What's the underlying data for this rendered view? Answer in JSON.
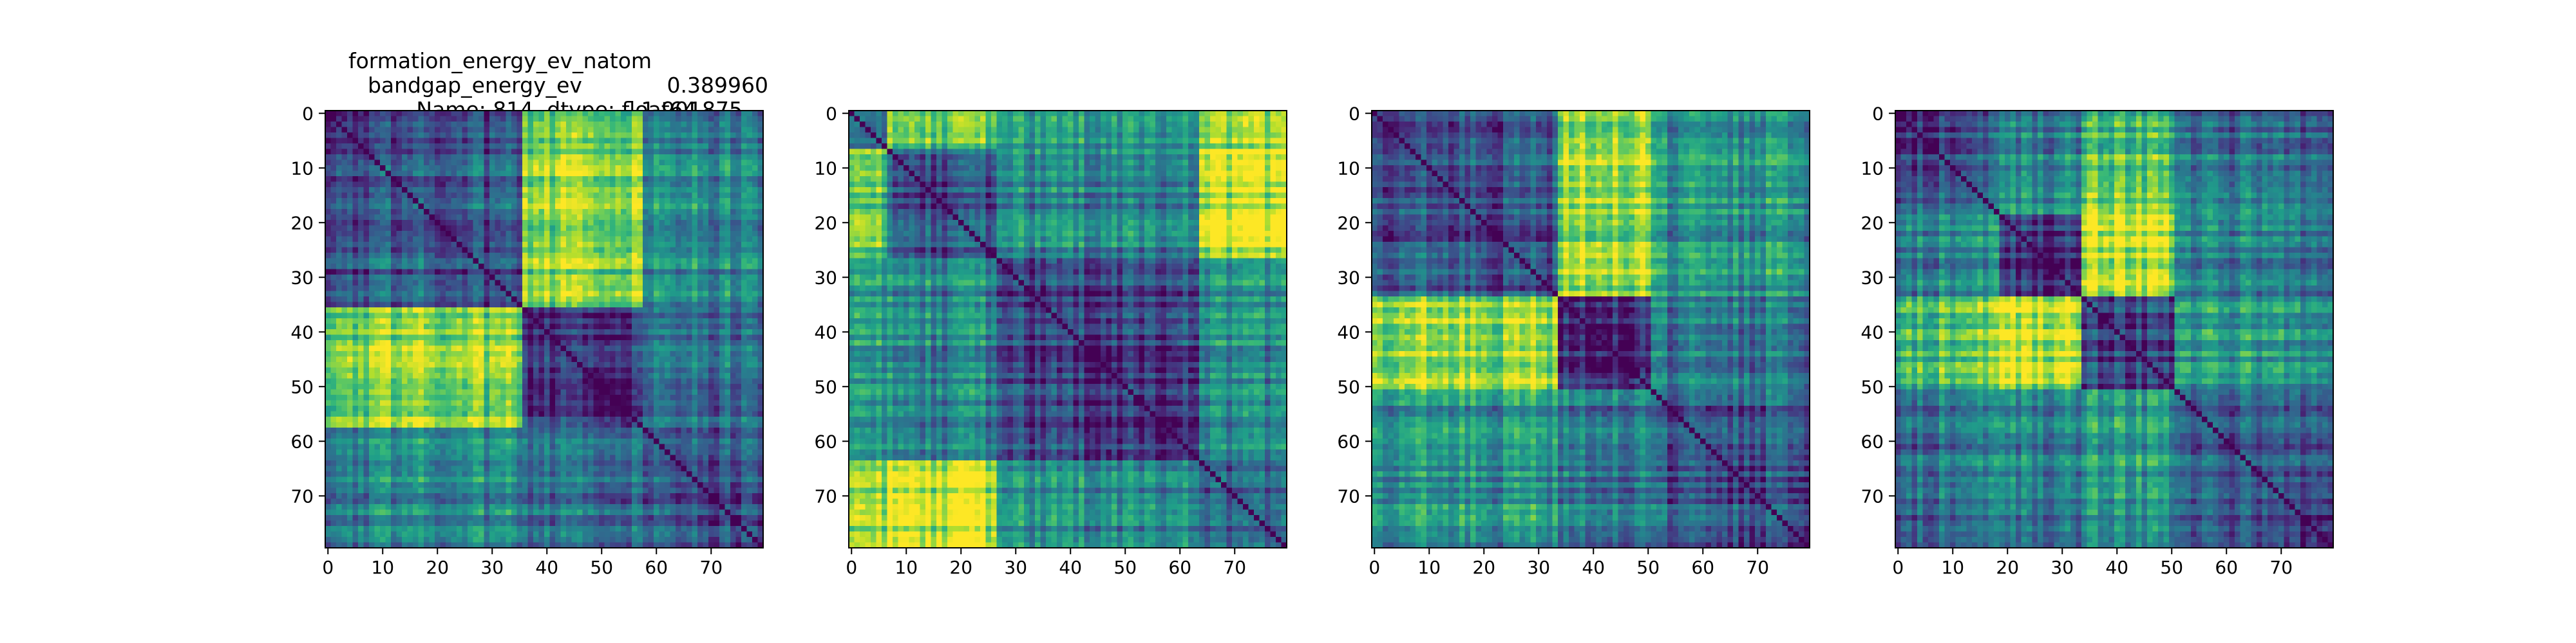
{
  "figure": {
    "title_lines": [
      {
        "label": "formation_energy_ev_natom",
        "value": "0.389960"
      },
      {
        "label": "bandgap_energy_ev",
        "value": "1.901875"
      },
      {
        "label": "Name: 814, dtype: float64",
        "value": ""
      }
    ]
  },
  "colormap": "viridis",
  "chart_data": [
    {
      "type": "heatmap",
      "title": "",
      "n": 80,
      "xlim": [
        0,
        79
      ],
      "ylim": [
        79,
        0
      ],
      "xticks": [
        0,
        10,
        20,
        30,
        40,
        50,
        60,
        70
      ],
      "yticks": [
        0,
        10,
        20,
        30,
        40,
        50,
        60,
        70
      ],
      "blocks": [
        {
          "start": 0,
          "end": 36,
          "level": 0.22
        },
        {
          "start": 36,
          "end": 58,
          "level": 0.12
        },
        {
          "start": 58,
          "end": 80,
          "level": 0.2
        }
      ],
      "off_diagonal": [
        {
          "a": 0,
          "b": 1,
          "level": 0.82
        },
        {
          "a": 0,
          "b": 2,
          "level": 0.45
        },
        {
          "a": 1,
          "b": 2,
          "level": 0.35
        }
      ],
      "diagonal_level": 0.0
    },
    {
      "type": "heatmap",
      "title": "",
      "n": 80,
      "xlim": [
        0,
        79
      ],
      "ylim": [
        79,
        0
      ],
      "xticks": [
        0,
        10,
        20,
        30,
        40,
        50,
        60,
        70
      ],
      "yticks": [
        0,
        10,
        20,
        30,
        40,
        50,
        60,
        70
      ],
      "blocks": [
        {
          "start": 0,
          "end": 7,
          "level": 0.25
        },
        {
          "start": 7,
          "end": 27,
          "level": 0.2
        },
        {
          "start": 27,
          "end": 64,
          "level": 0.15
        },
        {
          "start": 64,
          "end": 80,
          "level": 0.22
        }
      ],
      "off_diagonal": [
        {
          "a": 0,
          "b": 1,
          "level": 0.7
        },
        {
          "a": 0,
          "b": 2,
          "level": 0.5
        },
        {
          "a": 0,
          "b": 3,
          "level": 0.75
        },
        {
          "a": 1,
          "b": 2,
          "level": 0.45
        },
        {
          "a": 1,
          "b": 3,
          "level": 0.88
        },
        {
          "a": 2,
          "b": 3,
          "level": 0.45
        }
      ],
      "diagonal_level": 0.0
    },
    {
      "type": "heatmap",
      "title": "",
      "n": 80,
      "xlim": [
        0,
        79
      ],
      "ylim": [
        79,
        0
      ],
      "xticks": [
        0,
        10,
        20,
        30,
        40,
        50,
        60,
        70
      ],
      "yticks": [
        0,
        10,
        20,
        30,
        40,
        50,
        60,
        70
      ],
      "blocks": [
        {
          "start": 0,
          "end": 34,
          "level": 0.2
        },
        {
          "start": 34,
          "end": 51,
          "level": 0.12
        },
        {
          "start": 51,
          "end": 80,
          "level": 0.2
        }
      ],
      "off_diagonal": [
        {
          "a": 0,
          "b": 1,
          "level": 0.85
        },
        {
          "a": 0,
          "b": 2,
          "level": 0.5
        },
        {
          "a": 1,
          "b": 2,
          "level": 0.4
        }
      ],
      "diagonal_level": 0.0
    },
    {
      "type": "heatmap",
      "title": "",
      "n": 80,
      "xlim": [
        0,
        79
      ],
      "ylim": [
        79,
        0
      ],
      "xticks": [
        0,
        10,
        20,
        30,
        40,
        50,
        60,
        70
      ],
      "yticks": [
        0,
        10,
        20,
        30,
        40,
        50,
        60,
        70
      ],
      "blocks": [
        {
          "start": 0,
          "end": 19,
          "level": 0.2
        },
        {
          "start": 19,
          "end": 34,
          "level": 0.12
        },
        {
          "start": 34,
          "end": 51,
          "level": 0.15
        },
        {
          "start": 51,
          "end": 80,
          "level": 0.2
        }
      ],
      "off_diagonal": [
        {
          "a": 0,
          "b": 1,
          "level": 0.45
        },
        {
          "a": 0,
          "b": 2,
          "level": 0.7
        },
        {
          "a": 0,
          "b": 3,
          "level": 0.35
        },
        {
          "a": 1,
          "b": 2,
          "level": 0.9
        },
        {
          "a": 1,
          "b": 3,
          "level": 0.4
        },
        {
          "a": 2,
          "b": 3,
          "level": 0.5
        }
      ],
      "diagonal_level": 0.0
    }
  ]
}
